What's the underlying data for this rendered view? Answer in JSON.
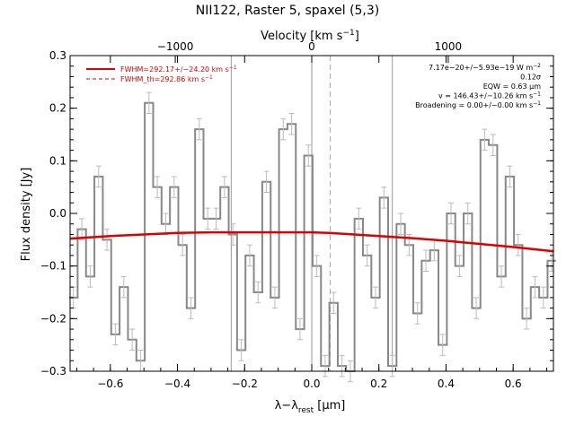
{
  "chart_data": {
    "type": "line",
    "title": "NII122, Raster 5, spaxel (5,3)",
    "xlabel_html": {
      "main": "λ−λ",
      "sub": "rest",
      "unit": " [μm]"
    },
    "ylabel": "Flux density [Jy]",
    "top_axis": {
      "label_main": "Velocity [km s",
      "label_sup": "−1",
      "label_end": "]",
      "ticks": [
        -1000,
        0,
        1000
      ],
      "tick_labels": [
        "−1000",
        "0",
        "1000"
      ]
    },
    "xlim": [
      -0.72,
      0.72
    ],
    "ylim": [
      -0.3,
      0.3
    ],
    "x_ticks": [
      -0.6,
      -0.4,
      -0.2,
      0.0,
      0.2,
      0.4,
      0.6
    ],
    "x_tick_labels": [
      "−0.6",
      "−0.4",
      "−0.2",
      "0.0",
      "0.2",
      "0.4",
      "0.6"
    ],
    "y_ticks": [
      -0.3,
      -0.2,
      -0.1,
      0.0,
      0.1,
      0.2,
      0.3
    ],
    "y_tick_labels": [
      "−0.3",
      "−0.2",
      "−0.1",
      "0.0",
      "0.1",
      "0.2",
      "0.3"
    ],
    "vlines": [
      -0.24,
      0.0,
      0.24
    ],
    "vline_dashed": 0.055,
    "legend": [
      {
        "label": "FWHM=292.17+/−24.20 km s",
        "sup": "−1",
        "color": "#dd0000",
        "style": "solid"
      },
      {
        "label": "FWHM_th=292.86 km s",
        "sup": "−1",
        "color": "#dd0000",
        "style": "dashed"
      }
    ],
    "annotations": [
      {
        "text": "7.17e−20+/−5.93e−19 W m",
        "sup": "−2"
      },
      {
        "text": "0.12σ",
        "sup": ""
      },
      {
        "text": "EQW = 0.63 μm",
        "sup": ""
      },
      {
        "text": "v = 146.43+/−10.26 km s",
        "sup": "−1"
      },
      {
        "text": "Broadening = 0.00+/−0.00 km s",
        "sup": "−1"
      }
    ],
    "series": [
      {
        "name": "data",
        "color": "#888888",
        "x": [
          -0.71,
          -0.685,
          -0.66,
          -0.635,
          -0.61,
          -0.585,
          -0.56,
          -0.535,
          -0.51,
          -0.485,
          -0.46,
          -0.435,
          -0.41,
          -0.385,
          -0.36,
          -0.335,
          -0.31,
          -0.285,
          -0.26,
          -0.235,
          -0.21,
          -0.185,
          -0.16,
          -0.135,
          -0.11,
          -0.085,
          -0.06,
          -0.035,
          -0.01,
          0.015,
          0.04,
          0.065,
          0.09,
          0.115,
          0.14,
          0.165,
          0.19,
          0.215,
          0.24,
          0.265,
          0.29,
          0.315,
          0.34,
          0.365,
          0.39,
          0.415,
          0.44,
          0.465,
          0.49,
          0.515,
          0.54,
          0.565,
          0.59,
          0.615,
          0.64,
          0.665,
          0.69,
          0.715
        ],
        "y": [
          -0.16,
          -0.03,
          -0.12,
          0.07,
          -0.05,
          -0.23,
          -0.14,
          -0.24,
          -0.28,
          0.21,
          0.05,
          -0.02,
          0.05,
          -0.06,
          -0.18,
          0.16,
          -0.01,
          -0.01,
          0.05,
          -0.04,
          -0.26,
          -0.08,
          -0.15,
          0.06,
          -0.16,
          0.16,
          0.17,
          -0.22,
          0.11,
          -0.1,
          -0.29,
          -0.17,
          -0.29,
          -0.3,
          -0.01,
          -0.08,
          -0.16,
          0.03,
          -0.29,
          -0.02,
          -0.06,
          -0.19,
          -0.09,
          -0.07,
          -0.25,
          0.0,
          -0.1,
          0.0,
          -0.18,
          0.14,
          0.13,
          -0.12,
          0.07,
          -0.06,
          -0.2,
          -0.14,
          -0.16,
          -0.09
        ],
        "err": [
          0.02,
          0.02,
          0.02,
          0.02,
          0.02,
          0.02,
          0.02,
          0.02,
          0.02,
          0.02,
          0.02,
          0.02,
          0.02,
          0.02,
          0.02,
          0.02,
          0.02,
          0.02,
          0.02,
          0.02,
          0.02,
          0.02,
          0.02,
          0.02,
          0.02,
          0.02,
          0.02,
          0.02,
          0.02,
          0.02,
          0.02,
          0.02,
          0.02,
          0.02,
          0.02,
          0.02,
          0.02,
          0.02,
          0.02,
          0.02,
          0.02,
          0.02,
          0.02,
          0.02,
          0.02,
          0.02,
          0.02,
          0.02,
          0.02,
          0.02,
          0.02,
          0.02,
          0.02,
          0.02,
          0.02,
          0.02,
          0.02,
          0.02
        ]
      },
      {
        "name": "fit",
        "color": "#dd0000",
        "x": [
          -0.72,
          -0.6,
          -0.5,
          -0.4,
          -0.3,
          -0.2,
          -0.1,
          0.0,
          0.05,
          0.1,
          0.2,
          0.3,
          0.4,
          0.5,
          0.6,
          0.72
        ],
        "y": [
          -0.048,
          -0.043,
          -0.04,
          -0.037,
          -0.036,
          -0.036,
          -0.036,
          -0.036,
          -0.037,
          -0.039,
          -0.043,
          -0.047,
          -0.052,
          -0.058,
          -0.064,
          -0.072
        ]
      }
    ]
  }
}
